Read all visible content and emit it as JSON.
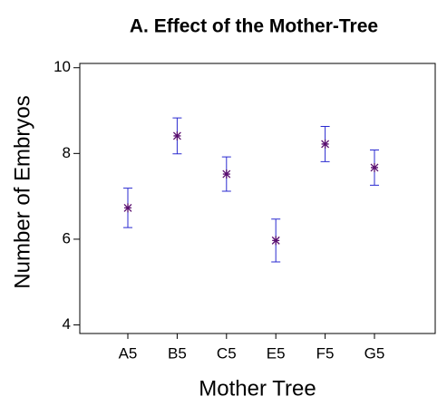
{
  "chart_data": {
    "type": "errorbar",
    "title": "A. Effect of the Mother-Tree",
    "xlabel": "Mother Tree",
    "ylabel": "Number of Embryos",
    "categories": [
      "A5",
      "B5",
      "C5",
      "E5",
      "F5",
      "G5"
    ],
    "values": [
      6.73,
      8.41,
      7.52,
      5.97,
      8.22,
      7.67
    ],
    "errors": [
      0.46,
      0.42,
      0.4,
      0.5,
      0.41,
      0.41
    ],
    "color": "#5a1070",
    "error_color": "#2a2ad0",
    "ylim": [
      3.8,
      10.1
    ],
    "yticks": [
      4,
      6,
      8,
      10
    ]
  }
}
